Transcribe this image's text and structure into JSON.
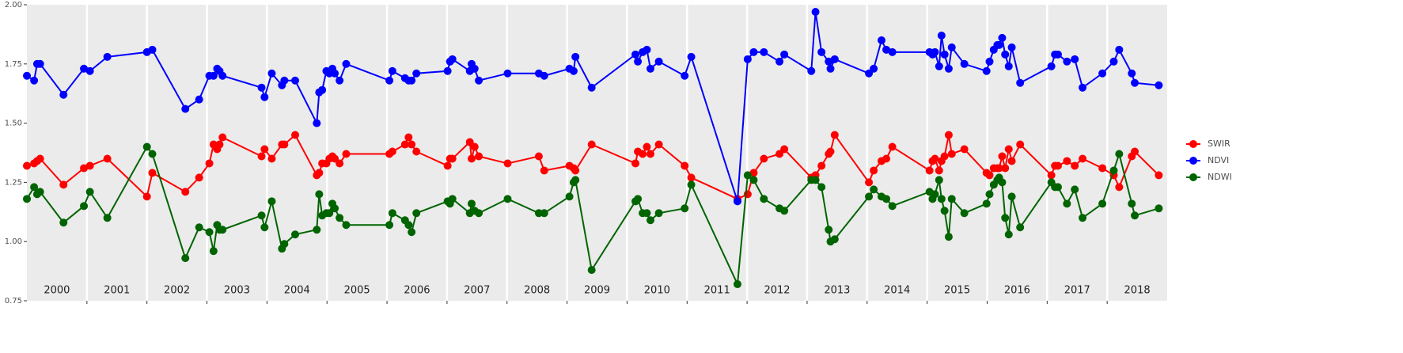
{
  "chart_data": {
    "type": "line",
    "x": [
      2000.0,
      2000.12,
      2000.17,
      2000.22,
      2000.61,
      2000.95,
      2001.05,
      2001.34,
      2002.0,
      2002.09,
      2002.64,
      2002.87,
      2003.04,
      2003.11,
      2003.17,
      2003.21,
      2003.26,
      2003.91,
      2003.96,
      2004.08,
      2004.25,
      2004.29,
      2004.47,
      2004.83,
      2004.87,
      2004.92,
      2004.99,
      2005.04,
      2005.09,
      2005.13,
      2005.21,
      2005.32,
      2006.04,
      2006.09,
      2006.3,
      2006.36,
      2006.41,
      2006.49,
      2007.01,
      2007.05,
      2007.09,
      2007.38,
      2007.41,
      2007.46,
      2007.53,
      2008.01,
      2008.53,
      2008.62,
      2009.04,
      2009.11,
      2009.14,
      2009.41,
      2010.14,
      2010.18,
      2010.26,
      2010.33,
      2010.39,
      2010.53,
      2010.96,
      2011.07,
      2011.84,
      2012.01,
      2012.11,
      2012.28,
      2012.54,
      2012.62,
      2013.07,
      2013.14,
      2013.24,
      2013.36,
      2013.39,
      2013.46,
      2014.03,
      2014.11,
      2014.24,
      2014.32,
      2014.42,
      2015.04,
      2015.09,
      2015.13,
      2015.2,
      2015.24,
      2015.29,
      2015.36,
      2015.41,
      2015.62,
      2015.99,
      2016.04,
      2016.11,
      2016.17,
      2016.2,
      2016.25,
      2016.3,
      2016.36,
      2016.41,
      2016.55,
      2017.07,
      2017.13,
      2017.18,
      2017.33,
      2017.46,
      2017.59,
      2017.92,
      2018.11,
      2018.2,
      2018.41,
      2018.46,
      2018.86
    ],
    "series": [
      {
        "name": "SWIR",
        "color": "#ff0000",
        "values": [
          1.32,
          1.33,
          1.34,
          1.35,
          1.24,
          1.31,
          1.32,
          1.35,
          1.19,
          1.29,
          1.21,
          1.27,
          1.33,
          1.41,
          1.39,
          1.41,
          1.44,
          1.36,
          1.39,
          1.35,
          1.41,
          1.41,
          1.45,
          1.28,
          1.29,
          1.33,
          1.33,
          1.35,
          1.36,
          1.35,
          1.33,
          1.37,
          1.37,
          1.38,
          1.41,
          1.44,
          1.41,
          1.38,
          1.32,
          1.35,
          1.35,
          1.42,
          1.35,
          1.4,
          1.36,
          1.33,
          1.36,
          1.3,
          1.32,
          1.31,
          1.3,
          1.41,
          1.33,
          1.38,
          1.37,
          1.4,
          1.37,
          1.41,
          1.32,
          1.27,
          1.18,
          1.2,
          1.29,
          1.35,
          1.37,
          1.39,
          1.27,
          1.28,
          1.32,
          1.37,
          1.38,
          1.45,
          1.25,
          1.3,
          1.34,
          1.35,
          1.4,
          1.3,
          1.34,
          1.35,
          1.3,
          1.34,
          1.36,
          1.45,
          1.37,
          1.39,
          1.29,
          1.28,
          1.31,
          1.31,
          1.31,
          1.36,
          1.31,
          1.39,
          1.34,
          1.41,
          1.28,
          1.32,
          1.32,
          1.34,
          1.32,
          1.35,
          1.31,
          1.28,
          1.23,
          1.36,
          1.38,
          1.28
        ]
      },
      {
        "name": "NDVI",
        "color": "#0000ff",
        "values": [
          1.7,
          1.68,
          1.75,
          1.75,
          1.62,
          1.73,
          1.72,
          1.78,
          1.8,
          1.81,
          1.56,
          1.6,
          1.7,
          1.7,
          1.73,
          1.72,
          1.7,
          1.65,
          1.61,
          1.71,
          1.66,
          1.68,
          1.68,
          1.5,
          1.63,
          1.64,
          1.72,
          1.71,
          1.73,
          1.71,
          1.68,
          1.75,
          1.68,
          1.72,
          1.69,
          1.68,
          1.68,
          1.71,
          1.72,
          1.76,
          1.77,
          1.72,
          1.75,
          1.73,
          1.68,
          1.71,
          1.71,
          1.7,
          1.73,
          1.72,
          1.78,
          1.65,
          1.79,
          1.76,
          1.8,
          1.81,
          1.73,
          1.76,
          1.7,
          1.78,
          1.17,
          1.77,
          1.8,
          1.8,
          1.76,
          1.79,
          1.72,
          1.97,
          1.8,
          1.76,
          1.73,
          1.77,
          1.71,
          1.73,
          1.85,
          1.81,
          1.8,
          1.8,
          1.79,
          1.8,
          1.74,
          1.87,
          1.79,
          1.73,
          1.82,
          1.75,
          1.72,
          1.76,
          1.81,
          1.83,
          1.83,
          1.86,
          1.79,
          1.74,
          1.82,
          1.67,
          1.74,
          1.79,
          1.79,
          1.76,
          1.77,
          1.65,
          1.71,
          1.76,
          1.81,
          1.71,
          1.67,
          1.66
        ]
      },
      {
        "name": "NDWI",
        "color": "#006400",
        "values": [
          1.18,
          1.23,
          1.2,
          1.21,
          1.08,
          1.15,
          1.21,
          1.1,
          1.4,
          1.37,
          0.93,
          1.06,
          1.04,
          0.96,
          1.07,
          1.05,
          1.05,
          1.11,
          1.06,
          1.17,
          0.97,
          0.99,
          1.03,
          1.05,
          1.2,
          1.11,
          1.12,
          1.12,
          1.16,
          1.14,
          1.1,
          1.07,
          1.07,
          1.12,
          1.09,
          1.07,
          1.04,
          1.12,
          1.17,
          1.16,
          1.18,
          1.12,
          1.16,
          1.13,
          1.12,
          1.18,
          1.12,
          1.12,
          1.19,
          1.25,
          1.26,
          0.88,
          1.17,
          1.18,
          1.12,
          1.12,
          1.09,
          1.12,
          1.14,
          1.24,
          0.82,
          1.28,
          1.26,
          1.18,
          1.14,
          1.13,
          1.26,
          1.26,
          1.23,
          1.05,
          1.0,
          1.01,
          1.19,
          1.22,
          1.19,
          1.18,
          1.15,
          1.21,
          1.18,
          1.2,
          1.26,
          1.18,
          1.13,
          1.02,
          1.18,
          1.12,
          1.16,
          1.2,
          1.24,
          1.26,
          1.27,
          1.25,
          1.1,
          1.03,
          1.19,
          1.06,
          1.25,
          1.23,
          1.23,
          1.16,
          1.22,
          1.1,
          1.16,
          1.3,
          1.37,
          1.16,
          1.11,
          1.14
        ]
      }
    ],
    "xlim": [
      2000,
      2019
    ],
    "xticks": [
      2001,
      2002,
      2003,
      2004,
      2005,
      2006,
      2007,
      2008,
      2009,
      2010,
      2011,
      2012,
      2013,
      2014,
      2015,
      2016,
      2017,
      2018
    ],
    "year_labels": [
      "2000",
      "2001",
      "2002",
      "2003",
      "2004",
      "2005",
      "2006",
      "2007",
      "2008",
      "2009",
      "2010",
      "2011",
      "2012",
      "2013",
      "2014",
      "2015",
      "2016",
      "2017",
      "2018"
    ],
    "ylim": [
      0.75,
      2.0
    ],
    "yticks": [
      {
        "value": 0.75,
        "label": "0.75"
      },
      {
        "value": 1.0,
        "label": "1.00"
      },
      {
        "value": 1.25,
        "label": "1.25"
      },
      {
        "value": 1.5,
        "label": "1.50"
      },
      {
        "value": 1.75,
        "label": "1.75"
      },
      {
        "value": 2.0,
        "label": "2.00"
      }
    ],
    "grid": "x",
    "legend": "right"
  }
}
